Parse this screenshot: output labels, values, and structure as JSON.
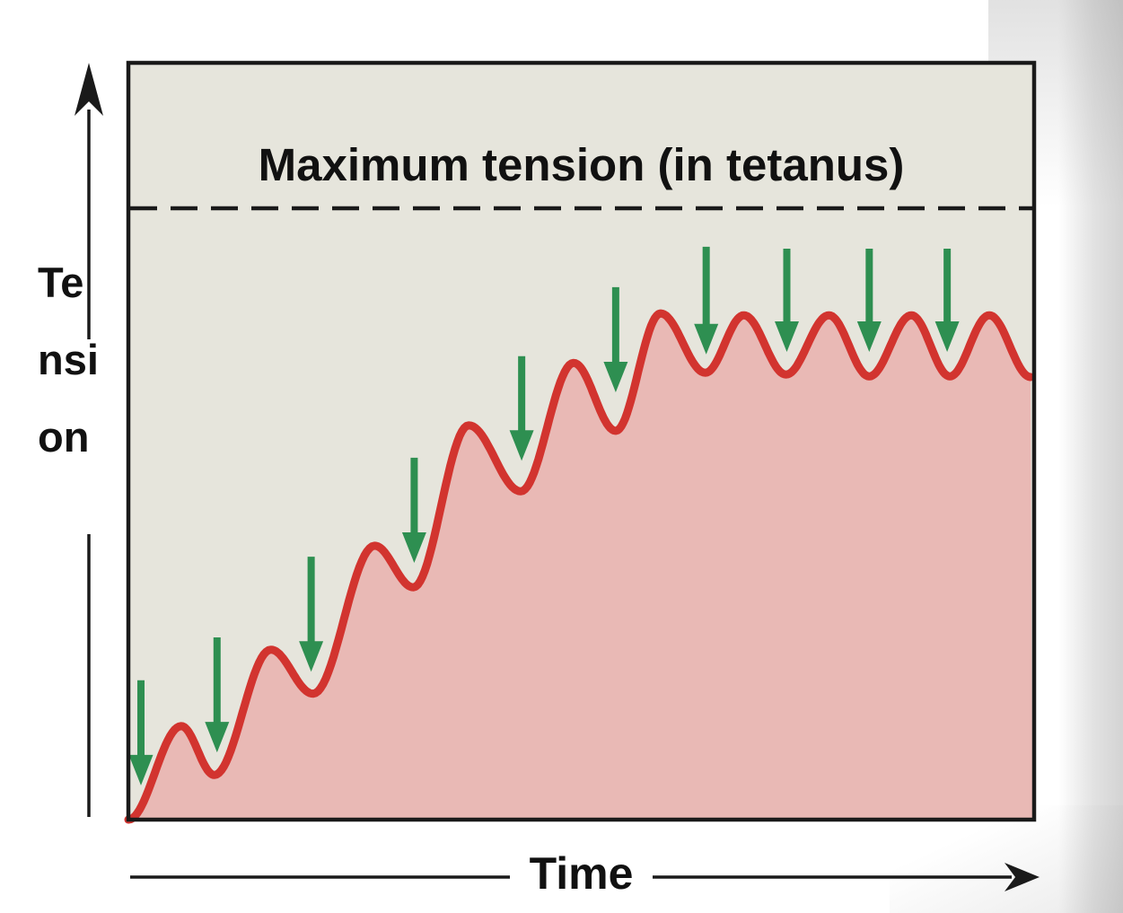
{
  "figure": {
    "description": "Physiology graph of muscle wave summation rising to unfused tetanus: repeated stimuli (green arrows) produce progressively summed twitches that plateau just below maximum tetanic tension."
  },
  "labels": {
    "max_tension_label": "Maximum tension (in tetanus)",
    "y_axis_label": "Tension",
    "y_axis_label_wrapped": "Te\nnsi\non",
    "x_axis_label": "Time"
  },
  "icons": {
    "stimulus_marker": "green-down-arrow",
    "y_axis_end": "up-arrowhead",
    "x_axis_end": "right-arrowhead"
  },
  "colors": {
    "plot_background": "#e6e5dc",
    "curve_stroke": "#d2342f",
    "curve_fill": "#e9b9b5",
    "stimulus_arrow": "#2e8f51",
    "axis_and_border": "#1a1a1a",
    "dashed_line": "#1a1a1a",
    "text": "#111111",
    "page_background": "#ffffff",
    "page_edge_shade": "#cfcfcf"
  },
  "chart_data": {
    "type": "line",
    "title": "",
    "xlabel": "Time",
    "ylabel": "Tension",
    "x_units": "relative time, 0-100 (axis unlabeled, arrow to the right)",
    "y_units": "tension as fraction of maximum tetanic tension (0 = rest, 1.0 = maximum)",
    "axis_ranges": {
      "x": [
        0,
        100
      ],
      "y": [
        0,
        1.24
      ]
    },
    "grid": false,
    "legend": false,
    "reference_line": {
      "label": "Maximum tension (in tetanus)",
      "tension": 1.0,
      "style": "dashed"
    },
    "series": [
      {
        "name": "muscle tension (wave summation building to unfused tetanus)",
        "points": [
          {
            "x": 0.0,
            "tension": 0.0
          },
          {
            "x": 5.85,
            "tension": 0.153
          },
          {
            "x": 9.51,
            "tension": 0.073
          },
          {
            "x": 15.76,
            "tension": 0.278
          },
          {
            "x": 20.42,
            "tension": 0.206
          },
          {
            "x": 27.25,
            "tension": 0.448
          },
          {
            "x": 31.52,
            "tension": 0.38
          },
          {
            "x": 37.66,
            "tension": 0.645
          },
          {
            "x": 43.41,
            "tension": 0.537
          },
          {
            "x": 49.26,
            "tension": 0.747
          },
          {
            "x": 53.91,
            "tension": 0.636
          },
          {
            "x": 58.87,
            "tension": 0.828
          },
          {
            "x": 63.83,
            "tension": 0.731
          },
          {
            "x": 68.09,
            "tension": 0.825
          },
          {
            "x": 72.75,
            "tension": 0.728
          },
          {
            "x": 77.5,
            "tension": 0.825
          },
          {
            "x": 81.96,
            "tension": 0.725
          },
          {
            "x": 86.62,
            "tension": 0.825
          },
          {
            "x": 90.88,
            "tension": 0.725
          },
          {
            "x": 95.24,
            "tension": 0.825
          },
          {
            "x": 99.8,
            "tension": 0.724
          }
        ]
      }
    ],
    "stimuli": {
      "description": "green downward arrows marking each stimulus at the trough of the preceding twitch",
      "count": 10,
      "events": [
        {
          "x": 1.39,
          "arrow_top_tension": 0.228,
          "arrow_tip_tension": 0.056
        },
        {
          "x": 9.81,
          "arrow_top_tension": 0.298,
          "arrow_tip_tension": 0.11
        },
        {
          "x": 20.22,
          "arrow_top_tension": 0.43,
          "arrow_tip_tension": 0.242
        },
        {
          "x": 31.62,
          "arrow_top_tension": 0.592,
          "arrow_tip_tension": 0.42
        },
        {
          "x": 43.51,
          "arrow_top_tension": 0.758,
          "arrow_tip_tension": 0.587
        },
        {
          "x": 53.91,
          "arrow_top_tension": 0.871,
          "arrow_tip_tension": 0.699
        },
        {
          "x": 63.92,
          "arrow_top_tension": 0.937,
          "arrow_tip_tension": 0.761
        },
        {
          "x": 72.84,
          "arrow_top_tension": 0.934,
          "arrow_tip_tension": 0.765
        },
        {
          "x": 81.96,
          "arrow_top_tension": 0.934,
          "arrow_tip_tension": 0.765
        },
        {
          "x": 90.58,
          "arrow_top_tension": 0.934,
          "arrow_tip_tension": 0.765
        }
      ]
    }
  }
}
